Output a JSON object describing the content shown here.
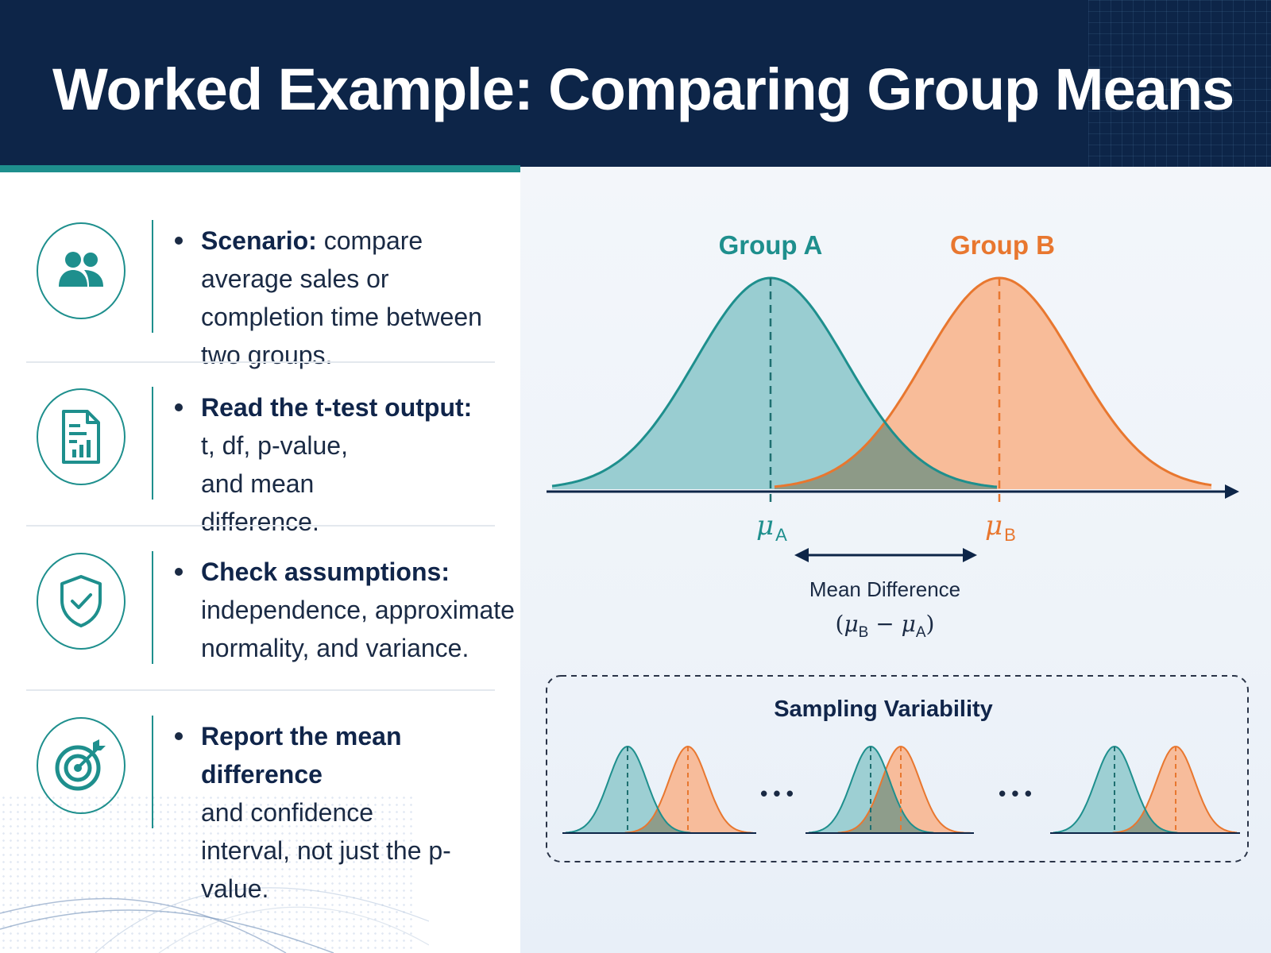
{
  "header": {
    "title": "Worked Example: Comparing Group Means"
  },
  "items": [
    {
      "icon": "users-icon",
      "lead": "Scenario:",
      "text": "compare average sales or completion time between two groups."
    },
    {
      "icon": "report-icon",
      "lead": "Read the t-test output:",
      "text": "t, df, p-value, and mean difference."
    },
    {
      "icon": "shield-check-icon",
      "lead": "Check assumptions:",
      "text": "independence, approximate normality, and variance."
    },
    {
      "icon": "target-icon",
      "lead": "Report the mean difference",
      "text": "and confidence interval, not just the p-value."
    }
  ],
  "diagram": {
    "group_a_label": "Group A",
    "group_b_label": "Group B",
    "mu_a_symbol": "μ",
    "mu_a_sub": "A",
    "mu_b_symbol": "μ",
    "mu_b_sub": "B",
    "mean_diff_label": "Mean Difference",
    "formula": {
      "open": "(",
      "mu1": "μ",
      "sub1": "B",
      "minus": " − ",
      "mu2": "μ",
      "sub2": "A",
      "close": ")"
    },
    "sampling_title": "Sampling Variability",
    "ellipsis": "• • •"
  },
  "colors": {
    "navy": "#0d2548",
    "teal": "#1e8f8d",
    "teal_fill": "#8fc9cc",
    "orange": "#e8772f",
    "orange_fill": "#f8b690",
    "overlap_fill": "#8c9884"
  }
}
